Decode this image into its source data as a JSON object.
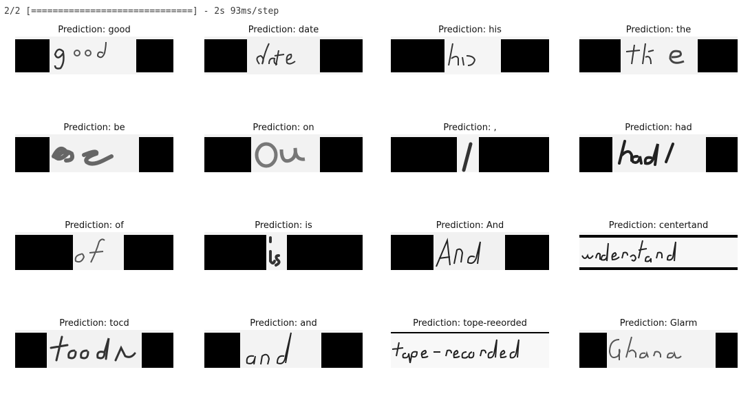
{
  "console": {
    "progress_text": "2/2 [==============================] - 2s 93ms/step"
  },
  "predictions": [
    {
      "label": "Prediction: good"
    },
    {
      "label": "Prediction: date"
    },
    {
      "label": "Prediction: his"
    },
    {
      "label": "Prediction: the"
    },
    {
      "label": "Prediction: be"
    },
    {
      "label": "Prediction: on"
    },
    {
      "label": "Prediction: ,"
    },
    {
      "label": "Prediction: had"
    },
    {
      "label": "Prediction: of"
    },
    {
      "label": "Prediction: is"
    },
    {
      "label": "Prediction: And"
    },
    {
      "label": "Prediction: centertand"
    },
    {
      "label": "Prediction: tocd"
    },
    {
      "label": "Prediction: and"
    },
    {
      "label": "Prediction: tope-reeorded"
    },
    {
      "label": "Prediction: Glarm"
    }
  ]
}
